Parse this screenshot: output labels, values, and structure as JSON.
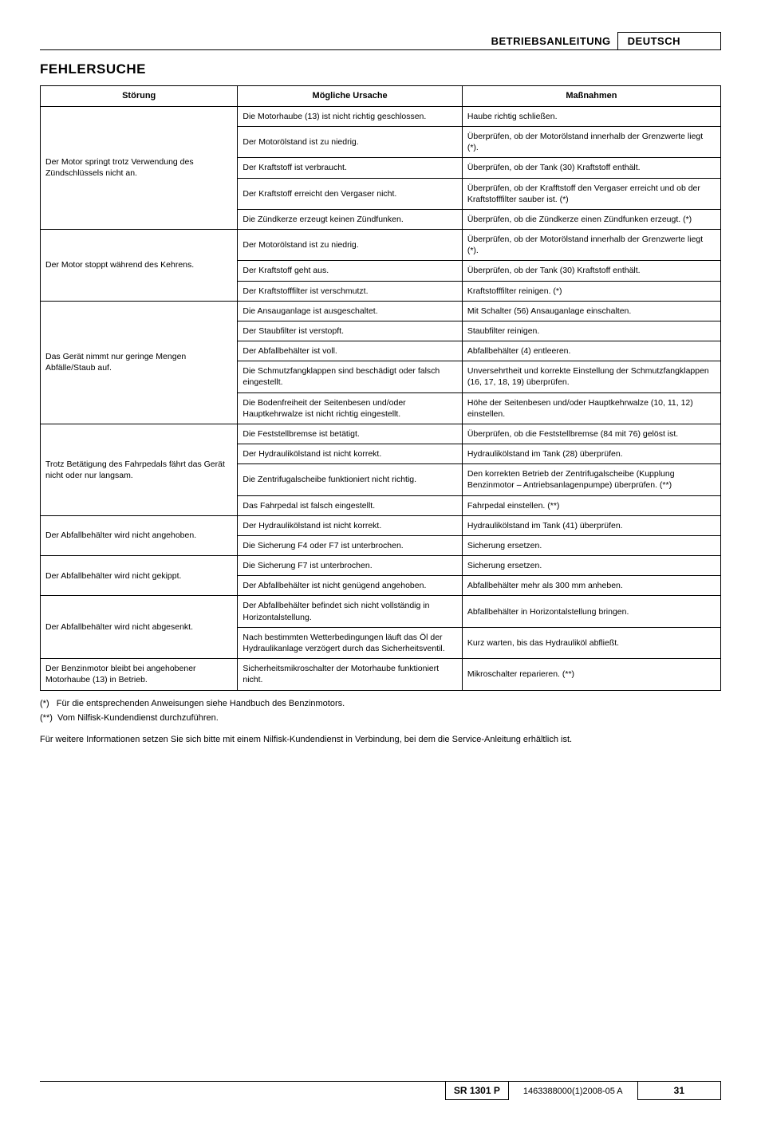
{
  "header": {
    "doc_type": "BETRIEBSANLEITUNG",
    "language": "DEUTSCH"
  },
  "section_title": "FEHLERSUCHE",
  "table": {
    "columns": [
      "Störung",
      "Mögliche Ursache",
      "Maßnahmen"
    ],
    "groups": [
      {
        "fault": "Der Motor springt trotz Verwendung des Zündschlüssels nicht an.",
        "rows": [
          {
            "cause": "Die Motorhaube (13) ist nicht richtig geschlossen.",
            "action": "Haube richtig schließen."
          },
          {
            "cause": "Der Motorölstand ist zu niedrig.",
            "action": "Überprüfen, ob der Motorölstand innerhalb der Grenzwerte liegt (*)."
          },
          {
            "cause": "Der Kraftstoff ist verbraucht.",
            "action": "Überprüfen, ob der Tank (30) Kraftstoff enthält."
          },
          {
            "cause": "Der Kraftstoff erreicht den Vergaser nicht.",
            "action": "Überprüfen, ob der Krafftstoff den Vergaser erreicht und ob der Kraftstofffilter sauber ist. (*)"
          },
          {
            "cause": "Die Zündkerze erzeugt keinen Zündfunken.",
            "action": "Überprüfen, ob die Zündkerze einen Zündfunken erzeugt. (*)"
          }
        ]
      },
      {
        "fault": "Der Motor stoppt während des Kehrens.",
        "rows": [
          {
            "cause": "Der Motorölstand ist zu niedrig.",
            "action": "Überprüfen, ob der Motorölstand innerhalb der Grenzwerte liegt (*)."
          },
          {
            "cause": "Der Kraftstoff geht aus.",
            "action": "Überprüfen, ob der Tank (30) Kraftstoff enthält."
          },
          {
            "cause": "Der Kraftstofffilter ist verschmutzt.",
            "action": "Kraftstofffilter reinigen. (*)"
          }
        ]
      },
      {
        "fault": "Das Gerät nimmt nur geringe Mengen Abfälle/Staub auf.",
        "rows": [
          {
            "cause": "Die Ansauganlage ist ausgeschaltet.",
            "action": "Mit Schalter (56) Ansauganlage einschalten."
          },
          {
            "cause": "Der Staubfilter ist verstopft.",
            "action": "Staubfilter reinigen."
          },
          {
            "cause": "Der Abfallbehälter ist voll.",
            "action": "Abfallbehälter (4) entleeren."
          },
          {
            "cause": "Die Schmutzfangklappen sind beschädigt oder falsch eingestellt.",
            "action": "Unversehrtheit und korrekte Einstellung der Schmutzfangklappen (16, 17, 18, 19) überprüfen."
          },
          {
            "cause": "Die Bodenfreiheit der Seitenbesen und/oder Hauptkehrwalze ist nicht richtig eingestellt.",
            "action": "Höhe der Seitenbesen und/oder Hauptkehrwalze (10, 11, 12) einstellen."
          }
        ]
      },
      {
        "fault": "Trotz Betätigung des Fahrpedals fährt das Gerät nicht oder nur langsam.",
        "rows": [
          {
            "cause": "Die Feststellbremse ist betätigt.",
            "action": "Überprüfen, ob die Feststellbremse (84 mit 76) gelöst ist."
          },
          {
            "cause": "Der Hydraulikölstand ist nicht korrekt.",
            "action": "Hydraulikölstand im Tank (28) überprüfen."
          },
          {
            "cause": "Die Zentrifugalscheibe funktioniert nicht richtig.",
            "action": "Den korrekten Betrieb der Zentrifugalscheibe (Kupplung Benzinmotor – Antriebsanlagenpumpe) überprüfen. (**)"
          },
          {
            "cause": "Das Fahrpedal ist falsch eingestellt.",
            "action": "Fahrpedal einstellen. (**)"
          }
        ]
      },
      {
        "fault": "Der Abfallbehälter wird nicht angehoben.",
        "rows": [
          {
            "cause": "Der Hydraulikölstand ist nicht korrekt.",
            "action": "Hydraulikölstand im Tank (41) überprüfen."
          },
          {
            "cause": "Die Sicherung F4 oder F7 ist unterbrochen.",
            "action": "Sicherung ersetzen."
          }
        ]
      },
      {
        "fault": "Der Abfallbehälter wird nicht gekippt.",
        "rows": [
          {
            "cause": "Die Sicherung F7 ist unterbrochen.",
            "action": "Sicherung ersetzen."
          },
          {
            "cause": "Der Abfallbehälter ist nicht genügend angehoben.",
            "action": "Abfallbehälter mehr als 300 mm anheben."
          }
        ]
      },
      {
        "fault": "Der Abfallbehälter wird nicht abgesenkt.",
        "rows": [
          {
            "cause": "Der Abfallbehälter befindet sich nicht vollständig in Horizontalstellung.",
            "action": "Abfallbehälter in Horizontalstellung bringen."
          },
          {
            "cause": "Nach bestimmten Wetterbedingungen läuft das Öl der Hydraulikanlage verzögert durch das Sicherheitsventil.",
            "action": "Kurz warten, bis das Hydrauliköl abfließt."
          }
        ]
      },
      {
        "fault": "Der Benzinmotor bleibt bei angehobener Motorhaube (13) in Betrieb.",
        "rows": [
          {
            "cause": "Sicherheitsmikroschalter der Motorhaube funktioniert nicht.",
            "action": "Mikroschalter reparieren. (**)"
          }
        ]
      }
    ]
  },
  "footnotes": {
    "f1_marker": "(*)",
    "f1_text": "Für die entsprechenden Anweisungen siehe Handbuch des Benzinmotors.",
    "f2_marker": "(**)",
    "f2_text": "Vom Nilfisk-Kundendienst durchzuführen."
  },
  "info_text": "Für weitere Informationen setzen Sie sich bitte mit einem Nilfisk-Kundendienst in Verbindung, bei dem die Service-Anleitung erhältlich ist.",
  "footer": {
    "model": "SR 1301 P",
    "doc_num": "1463388000(1)2008-05 A",
    "page": "31"
  }
}
